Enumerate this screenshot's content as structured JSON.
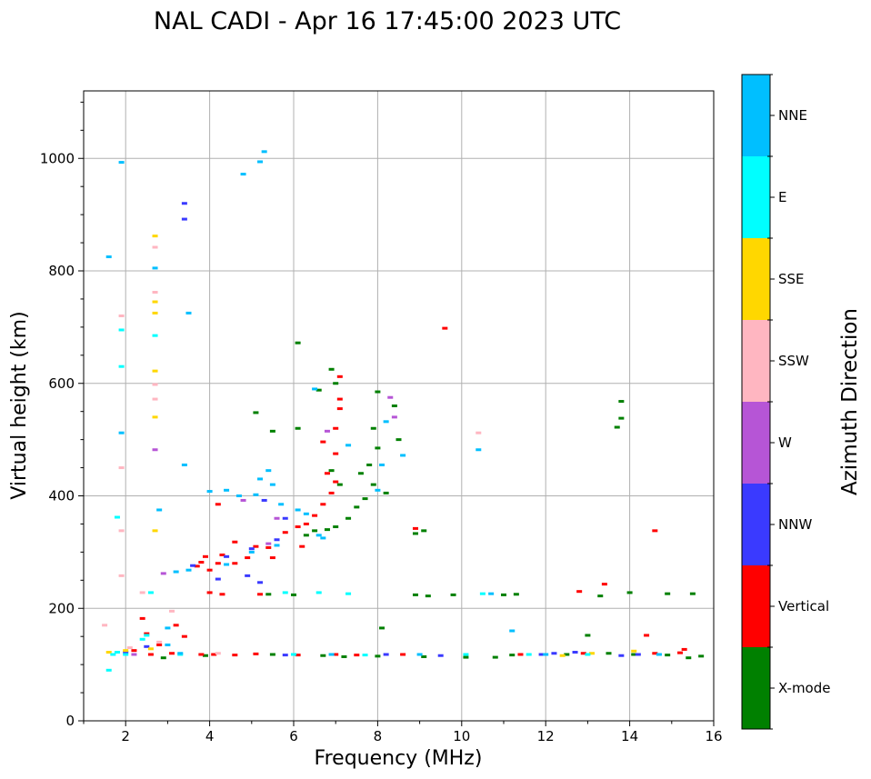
{
  "chart_data": {
    "type": "scatter",
    "title": "NAL CADI - Apr 16 17:45:00 2023 UTC",
    "xlabel": "Frequency (MHz)",
    "ylabel": "Virtual height (km)",
    "xlim": [
      1,
      16
    ],
    "ylim": [
      0,
      1120
    ],
    "xticks": [
      "2",
      "4",
      "6",
      "8",
      "10",
      "12",
      "14",
      "16"
    ],
    "yticks": [
      "0",
      "200",
      "400",
      "600",
      "800",
      "1000"
    ],
    "grid": true,
    "colorbar": {
      "title": "Azimuth Direction",
      "categories": [
        {
          "name": "X-mode",
          "color": "#008000"
        },
        {
          "name": "Vertical",
          "color": "#ff0000"
        },
        {
          "name": "NNW",
          "color": "#3a3aff"
        },
        {
          "name": "W",
          "color": "#b655d6"
        },
        {
          "name": "SSW",
          "color": "#ffb6c1"
        },
        {
          "name": "SSE",
          "color": "#ffd700"
        },
        {
          "name": "E",
          "color": "#00ffff"
        },
        {
          "name": "NNE",
          "color": "#00bfff"
        }
      ]
    },
    "series": [
      {
        "name": "X-mode",
        "points": [
          [
            2.9,
            112
          ],
          [
            3.9,
            116
          ],
          [
            5.5,
            118
          ],
          [
            6.7,
            116
          ],
          [
            7.2,
            114
          ],
          [
            8.0,
            115
          ],
          [
            9.1,
            114
          ],
          [
            10.1,
            113
          ],
          [
            10.8,
            113
          ],
          [
            11.2,
            117
          ],
          [
            12.5,
            118
          ],
          [
            13.5,
            120
          ],
          [
            14.1,
            118
          ],
          [
            14.9,
            117
          ],
          [
            15.7,
            115
          ],
          [
            15.4,
            112
          ],
          [
            5.4,
            225
          ],
          [
            6.0,
            224
          ],
          [
            8.9,
            224
          ],
          [
            9.2,
            222
          ],
          [
            9.8,
            224
          ],
          [
            11.0,
            224
          ],
          [
            11.3,
            225
          ],
          [
            13.3,
            222
          ],
          [
            14.0,
            228
          ],
          [
            14.9,
            226
          ],
          [
            15.5,
            226
          ],
          [
            7.0,
            345
          ],
          [
            6.8,
            340
          ],
          [
            7.3,
            360
          ],
          [
            7.5,
            380
          ],
          [
            7.7,
            395
          ],
          [
            7.9,
            420
          ],
          [
            8.2,
            405
          ],
          [
            7.6,
            440
          ],
          [
            7.8,
            455
          ],
          [
            8.0,
            485
          ],
          [
            7.9,
            520
          ],
          [
            6.9,
            445
          ],
          [
            7.1,
            420
          ],
          [
            8.9,
            333
          ],
          [
            9.1,
            338
          ],
          [
            6.3,
            330
          ],
          [
            6.5,
            338
          ],
          [
            6.1,
            672
          ],
          [
            6.6,
            588
          ],
          [
            6.9,
            625
          ],
          [
            7.0,
            600
          ],
          [
            8.0,
            585
          ],
          [
            8.4,
            560
          ],
          [
            8.5,
            500
          ],
          [
            5.5,
            515
          ],
          [
            6.1,
            520
          ],
          [
            5.1,
            548
          ],
          [
            13.8,
            568
          ],
          [
            13.8,
            538
          ],
          [
            13.7,
            522
          ],
          [
            13.0,
            152
          ],
          [
            8.1,
            165
          ]
        ]
      },
      {
        "name": "Vertical",
        "points": [
          [
            3.8,
            118
          ],
          [
            4.1,
            118
          ],
          [
            4.6,
            117
          ],
          [
            5.1,
            119
          ],
          [
            6.1,
            117
          ],
          [
            7.0,
            118
          ],
          [
            7.5,
            117
          ],
          [
            8.6,
            118
          ],
          [
            11.4,
            118
          ],
          [
            12.9,
            120
          ],
          [
            14.6,
            120
          ],
          [
            15.2,
            121
          ],
          [
            15.3,
            127
          ],
          [
            4.0,
            228
          ],
          [
            4.3,
            225
          ],
          [
            5.2,
            225
          ],
          [
            12.8,
            230
          ],
          [
            13.4,
            243
          ],
          [
            14.4,
            152
          ],
          [
            14.6,
            338
          ],
          [
            3.7,
            275
          ],
          [
            3.8,
            282
          ],
          [
            4.0,
            268
          ],
          [
            4.2,
            280
          ],
          [
            4.3,
            295
          ],
          [
            4.6,
            280
          ],
          [
            4.9,
            290
          ],
          [
            5.1,
            310
          ],
          [
            5.4,
            308
          ],
          [
            5.8,
            335
          ],
          [
            6.1,
            345
          ],
          [
            6.3,
            350
          ],
          [
            6.5,
            365
          ],
          [
            6.7,
            385
          ],
          [
            6.9,
            405
          ],
          [
            7.0,
            425
          ],
          [
            6.8,
            440
          ],
          [
            7.0,
            475
          ],
          [
            7.0,
            520
          ],
          [
            7.1,
            555
          ],
          [
            7.1,
            572
          ],
          [
            6.2,
            310
          ],
          [
            5.5,
            290
          ],
          [
            3.9,
            292
          ],
          [
            4.2,
            385
          ],
          [
            2.4,
            182
          ],
          [
            2.5,
            155
          ],
          [
            2.8,
            135
          ],
          [
            3.2,
            170
          ],
          [
            3.4,
            150
          ],
          [
            9.6,
            698
          ],
          [
            8.9,
            342
          ],
          [
            7.1,
            612
          ],
          [
            6.7,
            496
          ],
          [
            4.6,
            318
          ],
          [
            2.2,
            125
          ],
          [
            2.6,
            118
          ],
          [
            3.1,
            120
          ]
        ]
      },
      {
        "name": "NNW",
        "points": [
          [
            3.6,
            276
          ],
          [
            4.4,
            292
          ],
          [
            5.0,
            306
          ],
          [
            5.6,
            322
          ],
          [
            5.2,
            246
          ],
          [
            4.9,
            258
          ],
          [
            4.2,
            252
          ],
          [
            5.8,
            360
          ],
          [
            5.3,
            392
          ],
          [
            3.4,
            920
          ],
          [
            3.4,
            892
          ],
          [
            2.0,
            122
          ],
          [
            2.5,
            132
          ],
          [
            5.8,
            117
          ],
          [
            8.2,
            118
          ],
          [
            9.5,
            116
          ],
          [
            11.9,
            118
          ],
          [
            12.7,
            122
          ],
          [
            13.8,
            116
          ],
          [
            14.2,
            118
          ],
          [
            12.2,
            120
          ]
        ]
      },
      {
        "name": "W",
        "points": [
          [
            8.3,
            575
          ],
          [
            8.4,
            540
          ],
          [
            5.4,
            315
          ],
          [
            5.6,
            360
          ],
          [
            2.7,
            482
          ],
          [
            2.9,
            262
          ],
          [
            6.8,
            515
          ],
          [
            4.8,
            392
          ],
          [
            2.2,
            118
          ]
        ]
      },
      {
        "name": "SSW",
        "points": [
          [
            1.5,
            170
          ],
          [
            2.1,
            130
          ],
          [
            2.4,
            228
          ],
          [
            2.7,
            598
          ],
          [
            2.7,
            572
          ],
          [
            2.7,
            842
          ],
          [
            2.7,
            762
          ],
          [
            1.9,
            720
          ],
          [
            1.9,
            450
          ],
          [
            1.9,
            338
          ],
          [
            1.9,
            258
          ],
          [
            3.1,
            195
          ],
          [
            10.4,
            512
          ],
          [
            2.8,
            140
          ],
          [
            4.2,
            120
          ]
        ]
      },
      {
        "name": "SSE",
        "points": [
          [
            1.6,
            122
          ],
          [
            2.0,
            125
          ],
          [
            2.6,
            128
          ],
          [
            2.7,
            745
          ],
          [
            2.7,
            725
          ],
          [
            2.7,
            540
          ],
          [
            2.7,
            622
          ],
          [
            2.7,
            862
          ],
          [
            2.7,
            338
          ],
          [
            12.4,
            116
          ],
          [
            13.1,
            120
          ],
          [
            14.1,
            124
          ]
        ]
      },
      {
        "name": "E",
        "points": [
          [
            1.7,
            118
          ],
          [
            1.6,
            90
          ],
          [
            2.0,
            118
          ],
          [
            2.4,
            145
          ],
          [
            2.5,
            152
          ],
          [
            6.6,
            228
          ],
          [
            7.3,
            226
          ],
          [
            10.5,
            226
          ],
          [
            5.8,
            228
          ],
          [
            1.8,
            362
          ],
          [
            1.9,
            695
          ],
          [
            1.9,
            630
          ],
          [
            2.6,
            228
          ],
          [
            2.7,
            685
          ],
          [
            1.8,
            122
          ],
          [
            3.3,
            118
          ],
          [
            6.0,
            118
          ],
          [
            7.7,
            117
          ],
          [
            10.1,
            118
          ],
          [
            11.6,
            118
          ],
          [
            13.0,
            118
          ]
        ]
      },
      {
        "name": "NNE",
        "points": [
          [
            1.9,
            993
          ],
          [
            1.9,
            512
          ],
          [
            1.6,
            825
          ],
          [
            2.7,
            805
          ],
          [
            2.8,
            375
          ],
          [
            3.5,
            725
          ],
          [
            3.4,
            455
          ],
          [
            4.0,
            408
          ],
          [
            4.4,
            410
          ],
          [
            4.7,
            400
          ],
          [
            5.2,
            430
          ],
          [
            5.4,
            445
          ],
          [
            5.5,
            420
          ],
          [
            5.1,
            402
          ],
          [
            5.7,
            385
          ],
          [
            6.1,
            375
          ],
          [
            6.3,
            368
          ],
          [
            6.6,
            330
          ],
          [
            6.7,
            325
          ],
          [
            5.0,
            300
          ],
          [
            4.4,
            278
          ],
          [
            3.5,
            268
          ],
          [
            3.2,
            265
          ],
          [
            5.2,
            994
          ],
          [
            5.3,
            1012
          ],
          [
            4.8,
            972
          ],
          [
            8.2,
            532
          ],
          [
            8.1,
            455
          ],
          [
            8.0,
            410
          ],
          [
            10.4,
            482
          ],
          [
            11.2,
            160
          ],
          [
            7.3,
            490
          ],
          [
            6.5,
            590
          ],
          [
            5.6,
            312
          ],
          [
            10.7,
            226
          ],
          [
            8.6,
            472
          ],
          [
            3.3,
            120
          ],
          [
            6.9,
            118
          ],
          [
            9.0,
            118
          ],
          [
            12.0,
            118
          ],
          [
            14.7,
            118
          ],
          [
            3.0,
            135
          ],
          [
            3.0,
            165
          ]
        ]
      }
    ]
  }
}
